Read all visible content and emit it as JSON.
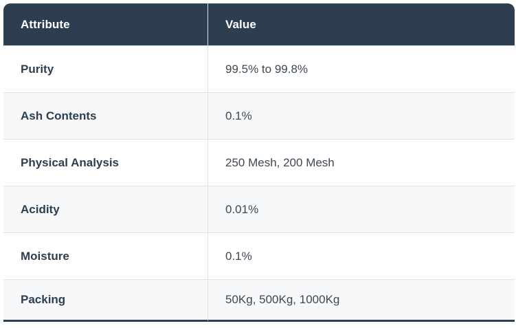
{
  "table": {
    "columns": [
      "Attribute",
      "Value"
    ],
    "rows": [
      {
        "attribute": "Purity",
        "value": "99.5% to 99.8%"
      },
      {
        "attribute": "Ash Contents",
        "value": "0.1%"
      },
      {
        "attribute": "Physical Analysis",
        "value": "250 Mesh, 200 Mesh"
      },
      {
        "attribute": "Acidity",
        "value": "0.01%"
      },
      {
        "attribute": "Moisture",
        "value": "0.1%"
      },
      {
        "attribute": "Packing",
        "value": "50Kg, 500Kg, 1000Kg"
      }
    ]
  },
  "colors": {
    "header_bg": "#2d3e50",
    "header_text": "#ffffff",
    "attribute_text": "#2c3e50",
    "value_text": "#3d4852",
    "stripe_bg": "#f7f8f9",
    "row_bg": "#ffffff",
    "divider": "#dee2e6",
    "bottom_border": "#2d3e50"
  }
}
